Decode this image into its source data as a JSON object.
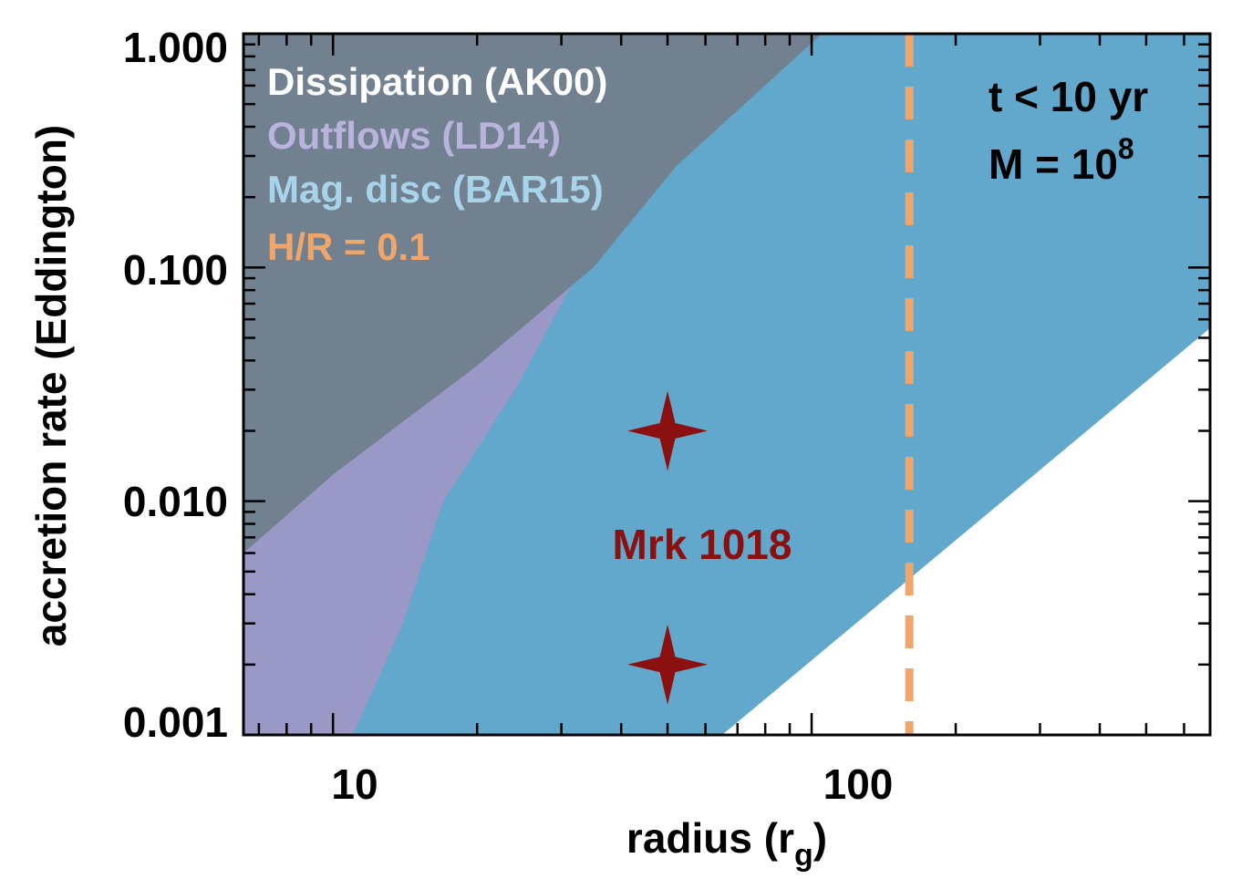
{
  "chart_data": {
    "type": "area",
    "xlabel": "radius (r",
    "xlabel_sub": "g",
    "xlabel_close": ")",
    "ylabel": "accretion rate (Eddington)",
    "x_scale": "log",
    "y_scale": "log",
    "xlim": [
      6.5,
      680
    ],
    "ylim": [
      0.001,
      1.0
    ],
    "x_ticks": [
      {
        "value": 10,
        "label": "10"
      },
      {
        "value": 100,
        "label": "100"
      }
    ],
    "y_ticks": [
      {
        "value": 0.001,
        "label": "0.001"
      },
      {
        "value": 0.01,
        "label": "0.010"
      },
      {
        "value": 0.1,
        "label": "0.100"
      },
      {
        "value": 1.0,
        "label": "1.000"
      }
    ],
    "grid": false,
    "legend_position": "top-left",
    "series": [
      {
        "name": "Mag. disc (BAR15)",
        "kind": "band",
        "color": "#62a8cc",
        "legend_color": "#a8d4ea",
        "upper": [
          [
            6.5,
            1.0
          ],
          [
            680,
            1.0
          ]
        ],
        "lower": [
          [
            65,
            0.001
          ],
          [
            680,
            0.055
          ]
        ]
      },
      {
        "name": "Outflows (LD14)",
        "kind": "region",
        "color": "#9a98c6",
        "legend_color": "#b9b4dc",
        "boundary": [
          [
            11,
            0.001
          ],
          [
            14,
            0.003
          ],
          [
            17,
            0.01
          ],
          [
            24,
            0.03
          ],
          [
            33,
            0.1
          ],
          [
            50,
            0.28
          ]
        ]
      },
      {
        "name": "Dissipation (AK00)",
        "kind": "region",
        "color": "#718190",
        "legend_color": "#ffffff",
        "boundary": [
          [
            6.5,
            0.006
          ],
          [
            10,
            0.013
          ],
          [
            20,
            0.038
          ],
          [
            35,
            0.1
          ],
          [
            52,
            0.27
          ],
          [
            105,
            1.0
          ]
        ]
      },
      {
        "name": "H/R = 0.1",
        "kind": "vline",
        "color": "#f0a66a",
        "legend_color": "#f0a66a",
        "x": 160
      }
    ],
    "points": [
      {
        "x": 50,
        "y": 0.02,
        "marker": "star4",
        "color": "#8b1010"
      },
      {
        "x": 50,
        "y": 0.002,
        "marker": "star4",
        "color": "#8b1010"
      }
    ],
    "annotations": {
      "object_label": "Mrk 1018",
      "object_label_color": "#8b1010",
      "time_label": "t < 10 yr",
      "mass_label": "M = 10",
      "mass_exponent": "8",
      "text_color": "#000000"
    }
  }
}
